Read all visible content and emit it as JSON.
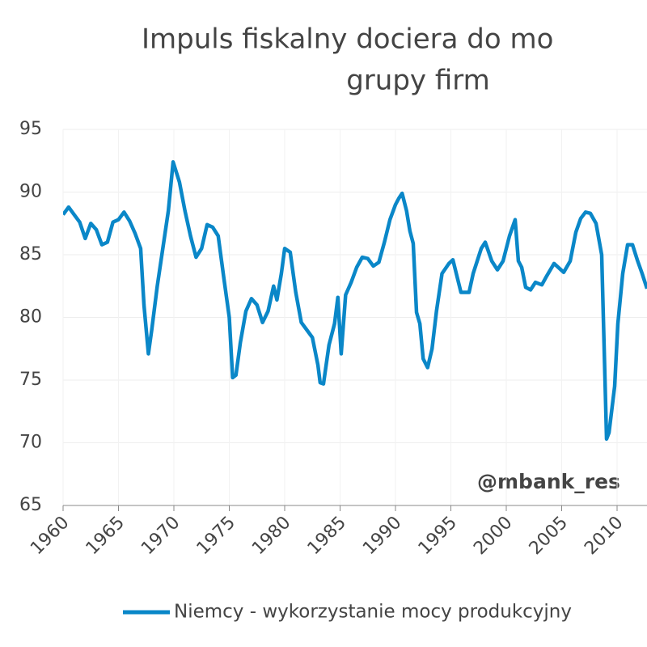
{
  "chart_data": {
    "type": "line",
    "title_lines": [
      "Impuls fiskalny dociera do mo",
      "grupy firm"
    ],
    "annotation": "@mbank_res",
    "x": [
      1960.0,
      1960.5,
      1961.0,
      1961.5,
      1962.0,
      1962.5,
      1963.0,
      1963.5,
      1964.0,
      1964.5,
      1965.0,
      1965.5,
      1966.0,
      1966.5,
      1967.0,
      1967.3,
      1967.7,
      1968.0,
      1968.5,
      1969.0,
      1969.5,
      1969.93,
      1970.5,
      1971.0,
      1971.5,
      1972.0,
      1972.5,
      1973.0,
      1973.5,
      1974.0,
      1974.5,
      1975.0,
      1975.3,
      1975.6,
      1976.0,
      1976.5,
      1977.0,
      1977.5,
      1978.0,
      1978.5,
      1979.0,
      1979.3,
      1979.7,
      1980.0,
      1980.5,
      1981.0,
      1981.5,
      1982.0,
      1982.5,
      1983.0,
      1983.2,
      1983.5,
      1984.0,
      1984.5,
      1984.8,
      1985.1,
      1985.5,
      1986.0,
      1986.5,
      1987.0,
      1987.5,
      1988.0,
      1988.5,
      1989.0,
      1989.5,
      1990.0,
      1990.3,
      1990.6,
      1991.0,
      1991.3,
      1991.6,
      1991.9,
      1992.2,
      1992.5,
      1992.9,
      1993.3,
      1993.7,
      1994.2,
      1994.82,
      1995.18,
      1995.91,
      1996.64,
      1997.01,
      1997.74,
      1998.1,
      1998.69,
      1999.2,
      1999.71,
      2000.29,
      2000.8,
      2001.09,
      2001.39,
      2001.75,
      2002.19,
      2002.63,
      2003.21,
      2003.58,
      2004.31,
      2005.18,
      2005.77,
      2006.28,
      2006.72,
      2007.15,
      2007.59,
      2008.1,
      2008.61,
      2008.91,
      2009.05,
      2009.27,
      2009.78,
      2010.07,
      2010.51,
      2010.95,
      2011.39,
      2011.82,
      2012.26,
      2012.7
    ],
    "series": [
      {
        "name": "Niemcy - wykorzystanie mocy produkcyjny",
        "color": "#0a87c8",
        "values": [
          88.2,
          88.8,
          88.2,
          87.6,
          86.3,
          87.5,
          87.0,
          85.8,
          86.0,
          87.6,
          87.8,
          88.4,
          87.7,
          86.7,
          85.5,
          81.0,
          77.1,
          79.0,
          82.5,
          85.5,
          88.5,
          92.4,
          90.8,
          88.5,
          86.5,
          84.8,
          85.5,
          87.4,
          87.2,
          86.5,
          83.2,
          80.0,
          75.2,
          75.4,
          78.0,
          80.5,
          81.5,
          81.0,
          79.6,
          80.5,
          82.5,
          81.4,
          83.5,
          85.5,
          85.2,
          82.0,
          79.6,
          79.0,
          78.4,
          76.2,
          74.8,
          74.7,
          77.8,
          79.5,
          81.6,
          77.1,
          81.8,
          82.8,
          84.0,
          84.8,
          84.7,
          84.1,
          84.4,
          86.0,
          87.8,
          89.0,
          89.5,
          89.9,
          88.5,
          86.9,
          85.9,
          80.4,
          79.5,
          76.7,
          76.0,
          77.5,
          80.5,
          83.5,
          84.3,
          84.6,
          82.0,
          82.0,
          83.5,
          85.5,
          86.0,
          84.5,
          83.8,
          84.5,
          86.5,
          87.8,
          84.5,
          84.0,
          82.4,
          82.2,
          82.8,
          82.6,
          83.2,
          84.3,
          83.6,
          84.5,
          86.8,
          87.9,
          88.4,
          88.3,
          87.5,
          85.0,
          75.0,
          70.3,
          70.8,
          74.5,
          79.5,
          83.5,
          85.8,
          85.8,
          84.6,
          83.5,
          82.3
        ]
      }
    ],
    "xlim": [
      1960,
      2012.7
    ],
    "xticks": [
      1960,
      1965,
      1970,
      1975,
      1980,
      1985,
      1990,
      1995,
      2000,
      2005,
      2010
    ],
    "ylim": [
      65,
      95
    ],
    "yticks": [
      65,
      70,
      75,
      80,
      85,
      90,
      95
    ],
    "grid": true
  }
}
